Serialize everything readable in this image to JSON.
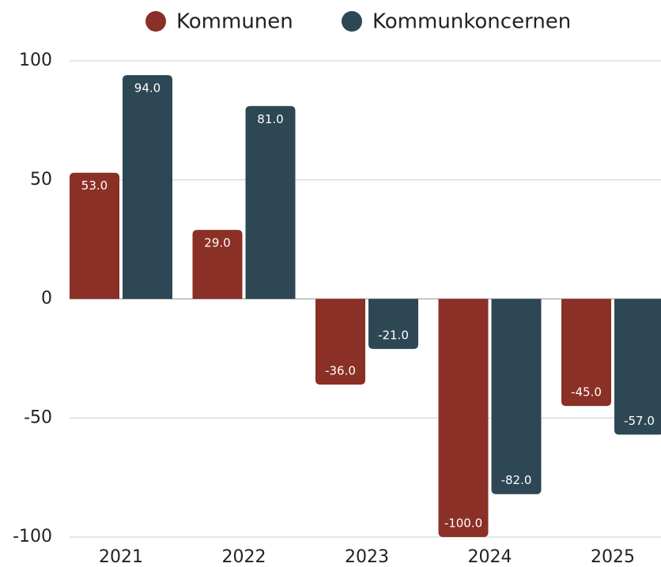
{
  "chart_data": {
    "type": "bar",
    "categories": [
      "2021",
      "2022",
      "2023",
      "2024",
      "2025"
    ],
    "series": [
      {
        "name": "Kommunen",
        "color": "#8b3026",
        "values": [
          53,
          29,
          -36,
          -100,
          -45
        ],
        "value_labels": [
          "53.0",
          "29.0",
          "-36.0",
          "-100.0",
          "-45.0"
        ]
      },
      {
        "name": "Kommunkoncernen",
        "color": "#2e4754",
        "values": [
          94,
          81,
          -21,
          -82,
          -57
        ],
        "value_labels": [
          "94.0",
          "81.0",
          "-21.0",
          "-82.0",
          "-57.0"
        ]
      }
    ],
    "ylim": [
      -100,
      100
    ],
    "yticks": [
      100,
      50,
      0,
      -50,
      -100
    ],
    "grid": true,
    "legend": "top"
  }
}
